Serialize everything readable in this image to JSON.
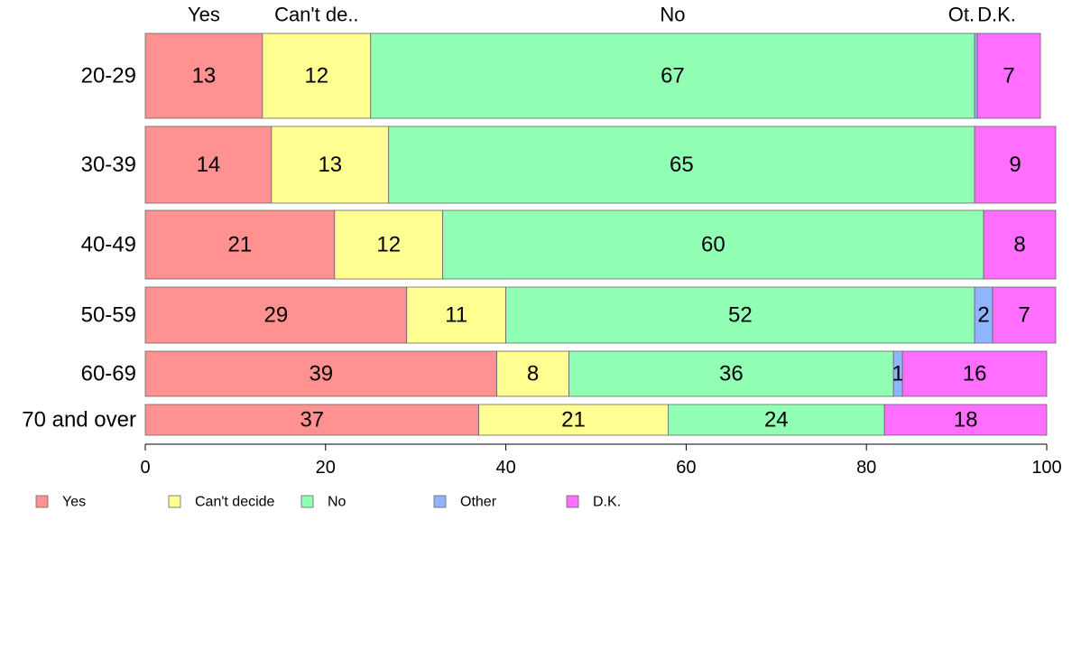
{
  "chart_data": {
    "type": "bar",
    "orientation": "horizontal",
    "stacked": true,
    "categories": [
      "20-29",
      "30-39",
      "40-49",
      "50-59",
      "60-69",
      "70 and over"
    ],
    "series": [
      {
        "name": "Yes",
        "color": "#FF9191",
        "values": [
          13,
          14,
          21,
          29,
          39,
          37
        ]
      },
      {
        "name": "Can't decide",
        "color": "#FFFF91",
        "values": [
          12,
          13,
          12,
          11,
          8,
          21
        ]
      },
      {
        "name": "No",
        "color": "#91FFB4",
        "values": [
          67,
          65,
          60,
          52,
          36,
          24
        ]
      },
      {
        "name": "Other",
        "color": "#91B4FF",
        "values": [
          0.3,
          0,
          0,
          2,
          1,
          0
        ]
      },
      {
        "name": "D.K.",
        "color": "#FF6EFF",
        "values": [
          7,
          9,
          8,
          7,
          16,
          18
        ]
      }
    ],
    "data_labels": [
      [
        "13",
        "12",
        "67",
        "",
        "7"
      ],
      [
        "14",
        "13",
        "65",
        "",
        "9"
      ],
      [
        "21",
        "12",
        "60",
        "",
        "8"
      ],
      [
        "29",
        "11",
        "52",
        "2",
        "7"
      ],
      [
        "39",
        "8",
        "36",
        "1",
        "16"
      ],
      [
        "37",
        "21",
        "24",
        "",
        "18"
      ]
    ],
    "top_labels": [
      "Yes",
      "Can't de..",
      "No",
      "Ot.",
      "D.K."
    ],
    "xlim": [
      0,
      100
    ],
    "x_ticks": [
      0,
      20,
      40,
      60,
      80,
      100
    ],
    "grid": false,
    "legend_position": "bottom"
  }
}
